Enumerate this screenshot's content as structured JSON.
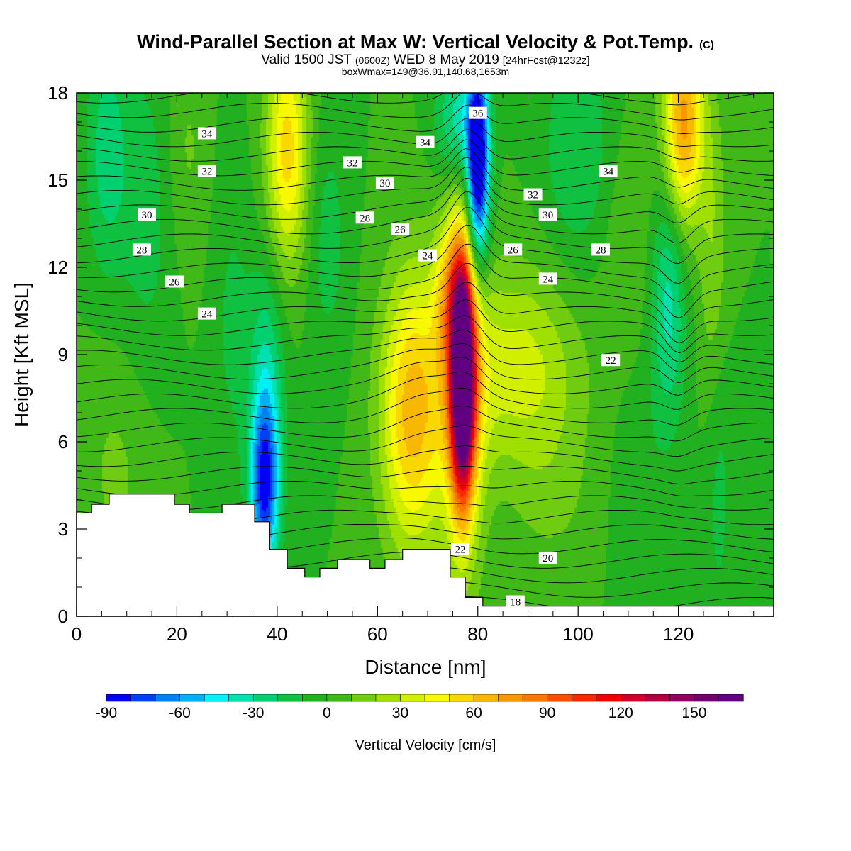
{
  "header": {
    "title": "Wind-Parallel Section at Max W: Vertical Velocity & Pot.Temp.",
    "title_mark": "(C)",
    "subtitle_a": "Valid 1500 JST",
    "subtitle_b": "(0600Z)",
    "subtitle_c": "WED 8 May 2019",
    "subtitle_d": "[24hrFcst@1232z]",
    "subtitle_line3": "boxWmax=149@36.91,140.68,1653m"
  },
  "chart_data": {
    "type": "heatmap",
    "title": "Wind-Parallel Section at Max W: Vertical Velocity & Pot.Temp.",
    "xlabel": "Distance [nm]",
    "ylabel": "Height [Kft MSL]",
    "xlim": [
      0,
      139
    ],
    "ylim": [
      0,
      18
    ],
    "x_ticks": [
      0,
      20,
      40,
      60,
      80,
      100,
      120
    ],
    "y_ticks": [
      0,
      3,
      6,
      9,
      12,
      15,
      18
    ],
    "x_tick_labels": [
      "0",
      "20",
      "40",
      "60",
      "80",
      "100",
      "120"
    ],
    "y_tick_labels": [
      "0",
      "3",
      "6",
      "9",
      "12",
      "15",
      "18"
    ],
    "grid": false,
    "colorbar": {
      "label": "Vertical Velocity [cm/s]",
      "min": -90,
      "max": 170,
      "step": 10,
      "tick_values": [
        -90,
        -60,
        -30,
        0,
        30,
        60,
        90,
        120,
        150
      ],
      "tick_labels": [
        "-90",
        "-60",
        "-30",
        "0",
        "30",
        "60",
        "90",
        "120",
        "150"
      ],
      "colors": [
        "#0000f5",
        "#0040f5",
        "#0080f5",
        "#00b0f5",
        "#00f0f5",
        "#00e0b0",
        "#00d070",
        "#10c040",
        "#20b020",
        "#40b818",
        "#70cc10",
        "#a0e000",
        "#d0f000",
        "#f8f800",
        "#f8d800",
        "#f8b800",
        "#f89800",
        "#f87800",
        "#f85000",
        "#f82800",
        "#f00000",
        "#d0002a",
        "#b00040",
        "#900060",
        "#700070",
        "#600080"
      ]
    },
    "w_field": {
      "units": "cm/s",
      "background": 0,
      "features": [
        {
          "x": 77,
          "y": 8,
          "sx": 1.6,
          "sy": 2.6,
          "w": 165
        },
        {
          "x": 77,
          "y": 8.3,
          "sx": 3.0,
          "sy": 4.6,
          "w": 60
        },
        {
          "x": 67,
          "y": 7,
          "sx": 4.5,
          "sy": 3.4,
          "w": 65
        },
        {
          "x": 75,
          "y": 11,
          "sx": 2.5,
          "sy": 1.6,
          "w": 40
        },
        {
          "x": 88,
          "y": 8.5,
          "sx": 9,
          "sy": 2.5,
          "w": 35
        },
        {
          "x": 80,
          "y": 15.5,
          "sx": 1.6,
          "sy": 2.6,
          "w": -110
        },
        {
          "x": 76,
          "y": 17,
          "sx": 3,
          "sy": 1.5,
          "w": -40
        },
        {
          "x": 37.5,
          "y": 4.5,
          "sx": 2.0,
          "sy": 2.2,
          "w": -80
        },
        {
          "x": 38,
          "y": 8.5,
          "sx": 2.5,
          "sy": 3,
          "w": -25
        },
        {
          "x": 42,
          "y": 16,
          "sx": 3.0,
          "sy": 2.8,
          "w": 55
        },
        {
          "x": 121,
          "y": 17,
          "sx": 2.8,
          "sy": 2.5,
          "w": 75
        },
        {
          "x": 118,
          "y": 11,
          "sx": 2.5,
          "sy": 3,
          "w": -35
        },
        {
          "x": 127,
          "y": 12,
          "sx": 2,
          "sy": 4,
          "w": 20
        },
        {
          "x": 128,
          "y": 5,
          "sx": 2,
          "sy": 4,
          "w": -15
        },
        {
          "x": 6,
          "y": 16,
          "sx": 3,
          "sy": 3,
          "w": -25
        },
        {
          "x": 14,
          "y": 14,
          "sx": 4,
          "sy": 4,
          "w": -15
        },
        {
          "x": 22,
          "y": 16,
          "sx": 3,
          "sy": 3,
          "w": 12
        },
        {
          "x": 50,
          "y": 13,
          "sx": 3,
          "sy": 3,
          "w": -15
        },
        {
          "x": 100,
          "y": 16,
          "sx": 5,
          "sy": 3,
          "w": -20
        },
        {
          "x": 110,
          "y": 13,
          "sx": 4,
          "sy": 3,
          "w": 10
        },
        {
          "x": 8,
          "y": 5,
          "sx": 5,
          "sy": 3,
          "w": 12
        },
        {
          "x": 31,
          "y": 10,
          "sx": 3,
          "sy": 4,
          "w": -12
        },
        {
          "x": 95,
          "y": 4,
          "sx": 6,
          "sy": 2,
          "w": 10
        },
        {
          "x": 112,
          "y": 5,
          "sx": 4,
          "sy": 3,
          "w": -8
        }
      ]
    },
    "theta_contours": {
      "units": "C",
      "interval": 1,
      "base_t0": 17.6,
      "lapse_per_kft": 1.0,
      "labels": [
        {
          "value": "34",
          "x": 26,
          "y": 16.6
        },
        {
          "value": "32",
          "x": 26,
          "y": 15.3
        },
        {
          "value": "30",
          "x": 14,
          "y": 13.8
        },
        {
          "value": "28",
          "x": 13,
          "y": 12.6
        },
        {
          "value": "26",
          "x": 19.5,
          "y": 11.5
        },
        {
          "value": "24",
          "x": 26,
          "y": 10.4
        },
        {
          "value": "32",
          "x": 55,
          "y": 15.6
        },
        {
          "value": "30",
          "x": 61.5,
          "y": 14.9
        },
        {
          "value": "28",
          "x": 57.5,
          "y": 13.7
        },
        {
          "value": "26",
          "x": 64.5,
          "y": 13.3
        },
        {
          "value": "24",
          "x": 70,
          "y": 12.4
        },
        {
          "value": "34",
          "x": 69.5,
          "y": 16.3
        },
        {
          "value": "36",
          "x": 80,
          "y": 17.3
        },
        {
          "value": "34",
          "x": 106,
          "y": 15.3
        },
        {
          "value": "32",
          "x": 91,
          "y": 14.5
        },
        {
          "value": "30",
          "x": 94,
          "y": 13.8
        },
        {
          "value": "28",
          "x": 104.5,
          "y": 12.6
        },
        {
          "value": "26",
          "x": 87,
          "y": 12.6
        },
        {
          "value": "24",
          "x": 94,
          "y": 11.6
        },
        {
          "value": "22",
          "x": 106.5,
          "y": 8.8
        },
        {
          "value": "22",
          "x": 76.5,
          "y": 2.3
        },
        {
          "value": "20",
          "x": 94,
          "y": 2.0
        },
        {
          "value": "18",
          "x": 87.5,
          "y": 0.5
        }
      ]
    },
    "terrain": {
      "units": "kft",
      "profile": [
        [
          0,
          3.55
        ],
        [
          3,
          3.85
        ],
        [
          6.5,
          4.2
        ],
        [
          19.5,
          3.85
        ],
        [
          22.5,
          3.55
        ],
        [
          29,
          3.85
        ],
        [
          35.5,
          3.25
        ],
        [
          38.5,
          2.3
        ],
        [
          42,
          1.65
        ],
        [
          45.5,
          1.35
        ],
        [
          48.5,
          1.65
        ],
        [
          52,
          1.95
        ],
        [
          58.5,
          1.65
        ],
        [
          61.5,
          1.95
        ],
        [
          65,
          2.3
        ],
        [
          74.5,
          1.35
        ],
        [
          77.5,
          0.65
        ],
        [
          81,
          0.35
        ],
        [
          139,
          0.35
        ]
      ]
    }
  }
}
